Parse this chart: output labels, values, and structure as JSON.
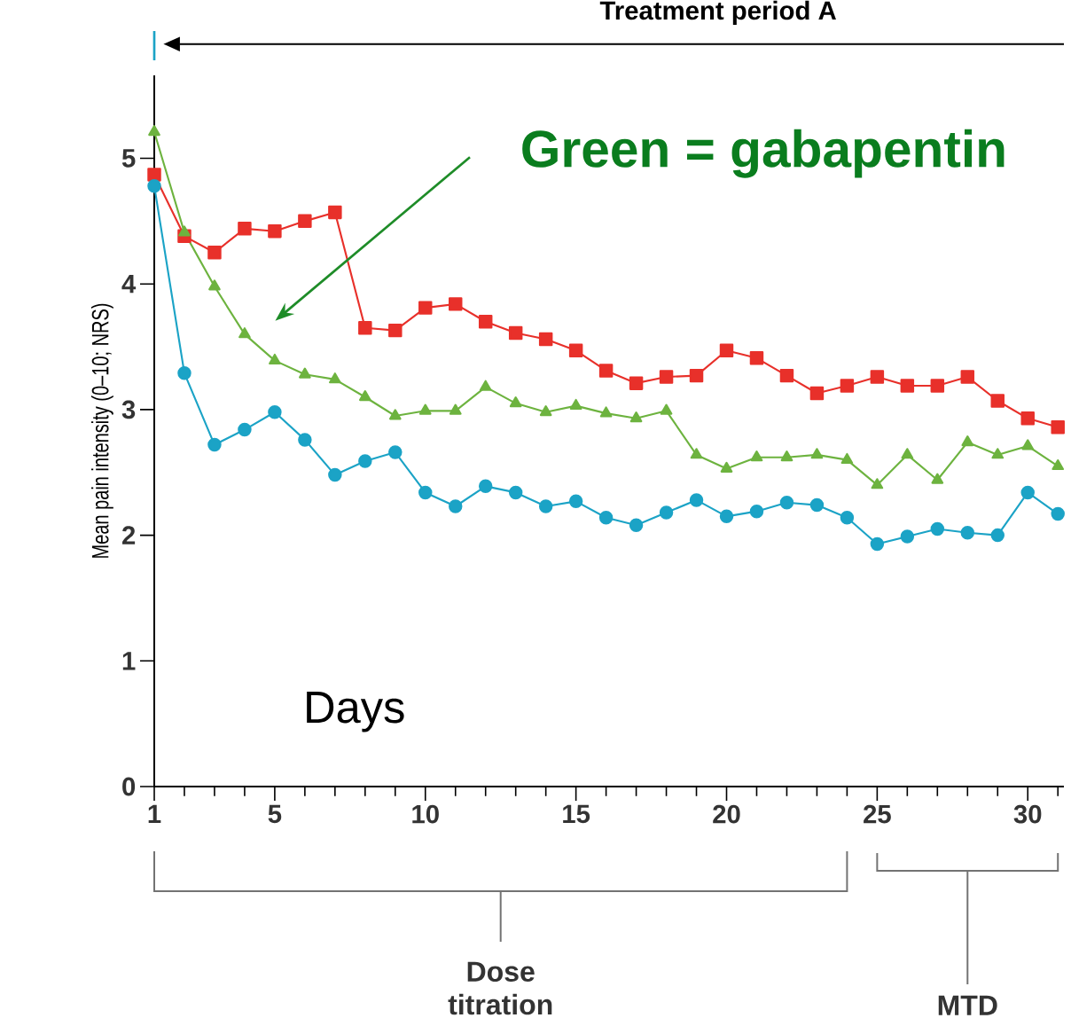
{
  "chart_data": {
    "type": "line",
    "title": "Treatment period A",
    "xlabel": "Days",
    "ylabel": "Mean pain intensity (0–10; NRS)",
    "x": [
      1,
      2,
      3,
      4,
      5,
      6,
      7,
      8,
      9,
      10,
      11,
      12,
      13,
      14,
      15,
      16,
      17,
      18,
      19,
      20,
      21,
      22,
      23,
      24,
      25,
      26,
      27,
      28,
      29,
      30,
      31
    ],
    "series": [
      {
        "color": "#e8302a",
        "marker": "square",
        "values": [
          4.87,
          4.38,
          4.25,
          4.44,
          4.42,
          4.5,
          4.57,
          3.65,
          3.63,
          3.81,
          3.84,
          3.7,
          3.61,
          3.56,
          3.47,
          3.31,
          3.21,
          3.26,
          3.27,
          3.47,
          3.41,
          3.27,
          3.13,
          3.19,
          3.26,
          3.19,
          3.19,
          3.26,
          3.07,
          2.93,
          2.86
        ]
      },
      {
        "color": "#6db33f",
        "marker": "triangle",
        "values": [
          5.21,
          4.41,
          3.98,
          3.6,
          3.39,
          3.28,
          3.24,
          3.1,
          2.95,
          2.99,
          2.99,
          3.18,
          3.05,
          2.98,
          3.03,
          2.97,
          2.93,
          2.99,
          2.64,
          2.53,
          2.62,
          2.62,
          2.64,
          2.6,
          2.4,
          2.64,
          2.44,
          2.74,
          2.64,
          2.71,
          2.55
        ]
      },
      {
        "color": "#1ba3c6",
        "marker": "circle",
        "values": [
          4.78,
          3.29,
          2.72,
          2.84,
          2.98,
          2.76,
          2.48,
          2.59,
          2.66,
          2.34,
          2.23,
          2.39,
          2.34,
          2.23,
          2.27,
          2.14,
          2.08,
          2.18,
          2.28,
          2.15,
          2.19,
          2.26,
          2.24,
          2.14,
          1.93,
          1.99,
          2.05,
          2.02,
          2.0,
          2.34,
          2.17
        ]
      }
    ],
    "xlim": [
      1,
      31.2
    ],
    "ylim": [
      0,
      5.66
    ],
    "xticks": [
      1,
      5,
      10,
      15,
      20,
      25,
      30
    ],
    "yticks": [
      0,
      1,
      2,
      3,
      4,
      5
    ],
    "grid": false,
    "line_style": "solid",
    "annotations": [
      "Green = gabapentin",
      "Dose titration",
      "MTD"
    ]
  }
}
